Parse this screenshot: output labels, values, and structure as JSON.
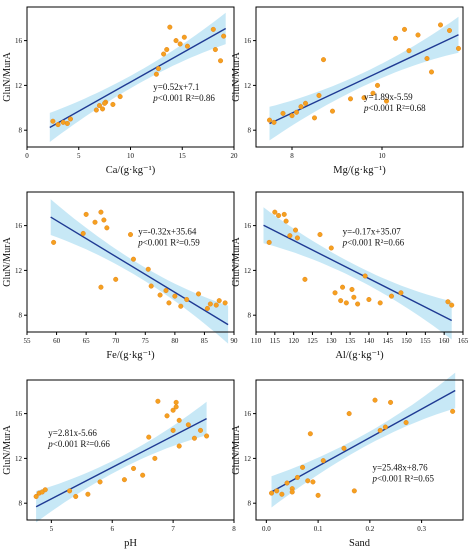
{
  "colors": {
    "point": "#f5a020",
    "point_stroke": "#e07b10",
    "line": "#1f3a93",
    "band": "#bde4f5",
    "axis": "#000000"
  },
  "chart_data": [
    {
      "type": "scatter",
      "xlabel": "Ca/(g·kg⁻¹)",
      "ylabel": "GluN/MurA",
      "xlim": [
        0,
        20
      ],
      "ylim": [
        6.5,
        19
      ],
      "xticks": [
        0,
        5,
        10,
        15,
        20
      ],
      "yticks": [
        8,
        12,
        16
      ],
      "xtick_labels": [
        "0",
        "5",
        "10",
        "15",
        "20"
      ],
      "ytick_labels": [
        "8",
        "12",
        "16"
      ],
      "fit": {
        "slope": 0.52,
        "intercept": 7.1
      },
      "band": {
        "x0": 2.2,
        "x1": 19.2,
        "w0": 1.3,
        "wmid": 0.55,
        "w1": 1.4
      },
      "equation": "y=0.52x+7.1",
      "stats_p": "p",
      "stats_rest": "<0.001 R²=0.86",
      "annot": {
        "x": 12.2,
        "y": 11.6
      },
      "x": [
        2.5,
        3.0,
        3.5,
        3.9,
        4.2,
        6.7,
        7.0,
        7.3,
        7.6,
        7.5,
        8.3,
        9.0,
        12.5,
        12.7,
        13.2,
        13.5,
        13.8,
        14.4,
        14.8,
        15.5,
        15.2,
        18.0,
        18.2,
        18.7,
        19.0
      ],
      "y": [
        8.8,
        8.5,
        8.7,
        8.6,
        9.0,
        9.8,
        10.2,
        9.9,
        10.5,
        10.4,
        10.3,
        11.0,
        13.0,
        13.5,
        14.8,
        15.2,
        17.2,
        16.0,
        15.7,
        15.5,
        16.3,
        17.0,
        15.2,
        14.2,
        16.4
      ]
    },
    {
      "type": "scatter",
      "xlabel": "Mg/(g·kg⁻¹)",
      "ylabel": "GluN/MurA",
      "xlim": [
        7.2,
        11.8
      ],
      "ylim": [
        6.5,
        19
      ],
      "xticks": [
        8,
        10
      ],
      "yticks": [
        8,
        12,
        16
      ],
      "xtick_labels": [
        "8",
        "10"
      ],
      "ytick_labels": [
        "8",
        "12",
        "16"
      ],
      "fit": {
        "slope": 1.89,
        "intercept": -5.59
      },
      "band": {
        "x0": 7.5,
        "x1": 11.7,
        "w0": 1.5,
        "wmid": 0.6,
        "w1": 1.6
      },
      "equation": "y=1.89x-5.59",
      "stats_p": "p",
      "stats_rest": "<0.001 R²=0.68",
      "annot": {
        "x": 9.6,
        "y": 10.7
      },
      "x": [
        7.5,
        7.6,
        7.8,
        8.0,
        8.1,
        8.2,
        8.3,
        8.6,
        8.7,
        8.5,
        8.9,
        9.3,
        9.6,
        9.8,
        9.9,
        10.1,
        10.3,
        10.5,
        10.6,
        10.8,
        11.0,
        11.1,
        11.3,
        11.5,
        11.7
      ],
      "y": [
        8.9,
        8.7,
        9.5,
        9.3,
        9.6,
        10.1,
        10.4,
        11.1,
        14.3,
        9.1,
        9.7,
        10.8,
        10.9,
        11.3,
        12.0,
        10.6,
        16.2,
        17.0,
        15.1,
        16.5,
        14.4,
        13.2,
        17.4,
        16.9,
        15.3
      ]
    },
    {
      "type": "scatter",
      "xlabel": "Fe/(g·kg⁻¹)",
      "ylabel": "GluN/MurA",
      "xlim": [
        55,
        90
      ],
      "ylim": [
        6.5,
        19
      ],
      "xticks": [
        55,
        60,
        65,
        70,
        75,
        80,
        85,
        90
      ],
      "yticks": [
        8,
        12,
        16
      ],
      "xtick_labels": [
        "55",
        "60",
        "65",
        "70",
        "75",
        "80",
        "85",
        "90"
      ],
      "ytick_labels": [
        "8",
        "12",
        "16"
      ],
      "fit": {
        "slope": -0.32,
        "intercept": 35.64
      },
      "band": {
        "x0": 59,
        "x1": 89,
        "w0": 1.6,
        "wmid": 0.6,
        "w1": 1.7
      },
      "equation": "y=-0.32x+35.64",
      "stats_p": "p",
      "stats_rest": "<0.001 R²=0.59",
      "annot": {
        "x": 73.8,
        "y": 15.2
      },
      "x": [
        59.5,
        64.5,
        65.0,
        66.5,
        67.5,
        68.0,
        68.5,
        67.5,
        70.0,
        72.5,
        73.0,
        75.5,
        76.0,
        77.5,
        78.5,
        79.0,
        80.0,
        81.0,
        82.0,
        84.0,
        85.5,
        86.0,
        87.0,
        87.5,
        88.5
      ],
      "y": [
        14.5,
        15.3,
        17.0,
        16.3,
        17.2,
        16.5,
        15.8,
        10.5,
        11.2,
        15.2,
        13.0,
        12.1,
        10.6,
        9.8,
        10.2,
        9.1,
        9.7,
        8.8,
        9.4,
        9.9,
        8.6,
        9.0,
        8.9,
        9.3,
        9.1
      ]
    },
    {
      "type": "scatter",
      "xlabel": "Al/(g·kg⁻¹)",
      "ylabel": "GluN/MurA",
      "xlim": [
        110,
        165
      ],
      "ylim": [
        6.5,
        19
      ],
      "xticks": [
        110,
        115,
        120,
        125,
        130,
        135,
        140,
        145,
        150,
        155,
        160,
        165
      ],
      "yticks": [
        8,
        12,
        16
      ],
      "xtick_labels": [
        "110",
        "115",
        "120",
        "125",
        "130",
        "135",
        "140",
        "145",
        "150",
        "155",
        "160",
        "165"
      ],
      "ytick_labels": [
        "8",
        "12",
        "16"
      ],
      "fit": {
        "slope": -0.17,
        "intercept": 35.07
      },
      "band": {
        "x0": 112,
        "x1": 162,
        "w0": 1.6,
        "wmid": 0.6,
        "w1": 1.7
      },
      "equation": "y=-0.17x+35.07",
      "stats_p": "p",
      "stats_rest": "<0.001 R²=0.66",
      "annot": {
        "x": 133,
        "y": 15.2
      },
      "x": [
        113.5,
        115.0,
        116.0,
        117.5,
        118.0,
        119.0,
        120.5,
        121.0,
        123.0,
        127.0,
        130.0,
        131.0,
        132.5,
        133.0,
        134.0,
        135.5,
        136.0,
        137.0,
        139.0,
        140.0,
        143.0,
        146.0,
        148.5,
        161.0,
        162.0
      ],
      "y": [
        14.5,
        17.2,
        16.9,
        17.0,
        16.4,
        15.1,
        15.6,
        14.9,
        11.2,
        15.2,
        14.0,
        10.0,
        9.3,
        10.5,
        9.1,
        10.3,
        9.6,
        9.0,
        11.5,
        9.4,
        9.1,
        9.7,
        10.0,
        9.2,
        8.9
      ]
    },
    {
      "type": "scatter",
      "xlabel": "pH",
      "ylabel": "GluN/MurA",
      "xlim": [
        4.6,
        8
      ],
      "ylim": [
        6.5,
        19
      ],
      "xticks": [
        5,
        6,
        7,
        8
      ],
      "yticks": [
        8,
        12,
        16
      ],
      "xtick_labels": [
        "5",
        "6",
        "7",
        "8"
      ],
      "ytick_labels": [
        "8",
        "12",
        "16"
      ],
      "fit": {
        "slope": 2.81,
        "intercept": -5.66
      },
      "band": {
        "x0": 4.75,
        "x1": 7.55,
        "w0": 1.4,
        "wmid": 0.55,
        "w1": 1.5
      },
      "equation": "y=2.81x-5.66",
      "stats_p": "p",
      "stats_rest": "<0.001 R²=0.66",
      "annot": {
        "x": 4.95,
        "y": 14.0
      },
      "x": [
        4.75,
        4.8,
        4.85,
        4.9,
        5.3,
        5.4,
        5.6,
        5.8,
        6.2,
        6.35,
        6.5,
        6.7,
        6.75,
        6.9,
        7.0,
        7.05,
        7.1,
        7.05,
        7.0,
        7.25,
        7.35,
        7.45,
        7.55,
        7.1,
        6.6
      ],
      "y": [
        8.6,
        8.9,
        9.0,
        9.2,
        9.1,
        8.6,
        8.8,
        9.9,
        10.1,
        11.1,
        10.5,
        12.0,
        17.1,
        15.8,
        16.3,
        17.0,
        15.4,
        16.6,
        14.5,
        15.0,
        13.8,
        14.5,
        14.0,
        13.1,
        13.9
      ]
    },
    {
      "type": "scatter",
      "xlabel": "Sand",
      "ylabel": "GluN/MurA",
      "xlim": [
        -0.02,
        0.38
      ],
      "ylim": [
        6.5,
        19
      ],
      "xticks": [
        0.0,
        0.1,
        0.2,
        0.3
      ],
      "yticks": [
        8,
        12,
        16
      ],
      "xtick_labels": [
        "0.0",
        "0.1",
        "0.2",
        "0.3"
      ],
      "ytick_labels": [
        "8",
        "12",
        "16"
      ],
      "fit": {
        "slope": 25.48,
        "intercept": 8.76
      },
      "band": {
        "x0": 0.01,
        "x1": 0.365,
        "w0": 1.4,
        "wmid": 0.55,
        "w1": 1.6
      },
      "equation": "y=25.48x+8.76",
      "stats_p": "p",
      "stats_rest": "<0.001 R²=0.65",
      "annot": {
        "x": 0.205,
        "y": 10.9
      },
      "x": [
        0.01,
        0.02,
        0.03,
        0.04,
        0.05,
        0.06,
        0.07,
        0.08,
        0.085,
        0.1,
        0.11,
        0.15,
        0.16,
        0.17,
        0.21,
        0.22,
        0.23,
        0.24,
        0.27,
        0.36,
        0.09,
        0.05
      ],
      "y": [
        8.9,
        9.1,
        8.8,
        9.8,
        9.3,
        10.3,
        11.2,
        10.0,
        14.2,
        8.7,
        11.8,
        12.9,
        16.0,
        9.1,
        17.2,
        14.5,
        14.8,
        17.0,
        15.2,
        16.2,
        9.9,
        9.0
      ]
    }
  ]
}
